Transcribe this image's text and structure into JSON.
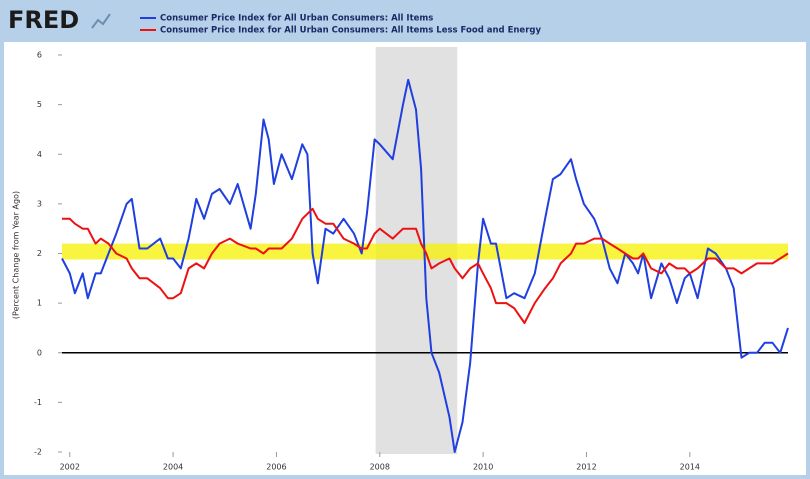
{
  "brand": "FRED",
  "chart_data": {
    "type": "line",
    "y_label": "(Percent Change from Year Ago)",
    "x": [
      2001.85,
      2002.0,
      2002.1,
      2002.25,
      2002.35,
      2002.5,
      2002.6,
      2002.75,
      2002.9,
      2003.1,
      2003.2,
      2003.35,
      2003.5,
      2003.75,
      2003.9,
      2004.0,
      2004.15,
      2004.3,
      2004.45,
      2004.6,
      2004.75,
      2004.9,
      2005.1,
      2005.25,
      2005.5,
      2005.6,
      2005.75,
      2005.85,
      2005.95,
      2006.1,
      2006.3,
      2006.5,
      2006.6,
      2006.7,
      2006.8,
      2006.95,
      2007.1,
      2007.3,
      2007.5,
      2007.65,
      2007.75,
      2007.9,
      2008.0,
      2008.25,
      2008.45,
      2008.55,
      2008.7,
      2008.8,
      2008.9,
      2009.0,
      2009.15,
      2009.35,
      2009.45,
      2009.6,
      2009.75,
      2009.9,
      2010.0,
      2010.15,
      2010.25,
      2010.45,
      2010.6,
      2010.8,
      2011.0,
      2011.2,
      2011.35,
      2011.5,
      2011.7,
      2011.8,
      2011.95,
      2012.15,
      2012.3,
      2012.45,
      2012.6,
      2012.75,
      2012.9,
      2013.0,
      2013.1,
      2013.25,
      2013.45,
      2013.6,
      2013.75,
      2013.9,
      2014.0,
      2014.15,
      2014.35,
      2014.5,
      2014.7,
      2014.85,
      2015.0,
      2015.15,
      2015.3,
      2015.45,
      2015.6,
      2015.75,
      2015.9
    ],
    "series": [
      {
        "name": "Consumer Price Index for All Urban Consumers: All Items",
        "color": "#1f3fe0",
        "values": [
          1.9,
          1.6,
          1.2,
          1.6,
          1.1,
          1.6,
          1.6,
          2.0,
          2.4,
          3.0,
          3.1,
          2.1,
          2.1,
          2.3,
          1.9,
          1.9,
          1.7,
          2.3,
          3.1,
          2.7,
          3.2,
          3.3,
          3.0,
          3.4,
          2.5,
          3.2,
          4.7,
          4.3,
          3.4,
          4.0,
          3.5,
          4.2,
          4.0,
          2.0,
          1.4,
          2.5,
          2.4,
          2.7,
          2.4,
          2.0,
          2.8,
          4.3,
          4.2,
          3.9,
          5.0,
          5.5,
          4.9,
          3.7,
          1.1,
          0.0,
          -0.4,
          -1.3,
          -2.0,
          -1.4,
          -0.2,
          1.8,
          2.7,
          2.2,
          2.2,
          1.1,
          1.2,
          1.1,
          1.6,
          2.7,
          3.5,
          3.6,
          3.9,
          3.5,
          3.0,
          2.7,
          2.3,
          1.7,
          1.4,
          2.0,
          1.8,
          1.6,
          2.0,
          1.1,
          1.8,
          1.5,
          1.0,
          1.5,
          1.6,
          1.1,
          2.1,
          2.0,
          1.7,
          1.3,
          -0.1,
          0.0,
          0.0,
          0.2,
          0.2,
          0.0,
          0.5
        ]
      },
      {
        "name": "Consumer Price Index for All Urban Consumers: All Items Less Food and Energy",
        "color": "#ee1111",
        "values": [
          2.7,
          2.7,
          2.6,
          2.5,
          2.5,
          2.2,
          2.3,
          2.2,
          2.0,
          1.9,
          1.7,
          1.5,
          1.5,
          1.3,
          1.1,
          1.1,
          1.2,
          1.7,
          1.8,
          1.7,
          2.0,
          2.2,
          2.3,
          2.2,
          2.1,
          2.1,
          2.0,
          2.1,
          2.1,
          2.1,
          2.3,
          2.7,
          2.8,
          2.9,
          2.7,
          2.6,
          2.6,
          2.3,
          2.2,
          2.1,
          2.1,
          2.4,
          2.5,
          2.3,
          2.5,
          2.5,
          2.5,
          2.2,
          2.0,
          1.7,
          1.8,
          1.9,
          1.7,
          1.5,
          1.7,
          1.8,
          1.6,
          1.3,
          1.0,
          1.0,
          0.9,
          0.6,
          1.0,
          1.3,
          1.5,
          1.8,
          2.0,
          2.2,
          2.2,
          2.3,
          2.3,
          2.2,
          2.1,
          2.0,
          1.9,
          1.9,
          2.0,
          1.7,
          1.6,
          1.8,
          1.7,
          1.7,
          1.6,
          1.7,
          1.9,
          1.9,
          1.7,
          1.7,
          1.6,
          1.7,
          1.8,
          1.8,
          1.8,
          1.9,
          2.0
        ]
      }
    ],
    "xlim": [
      2001.85,
      2015.9
    ],
    "xticks": [
      2002,
      2004,
      2006,
      2008,
      2010,
      2012,
      2014
    ],
    "ylim": [
      -2,
      6
    ],
    "yticks": [
      6,
      5,
      4,
      3,
      2,
      1,
      0,
      -1,
      -2
    ],
    "recession": [
      2007.92,
      2009.5
    ],
    "highlight_band": [
      1.88,
      2.2
    ],
    "reference_line": 0
  }
}
